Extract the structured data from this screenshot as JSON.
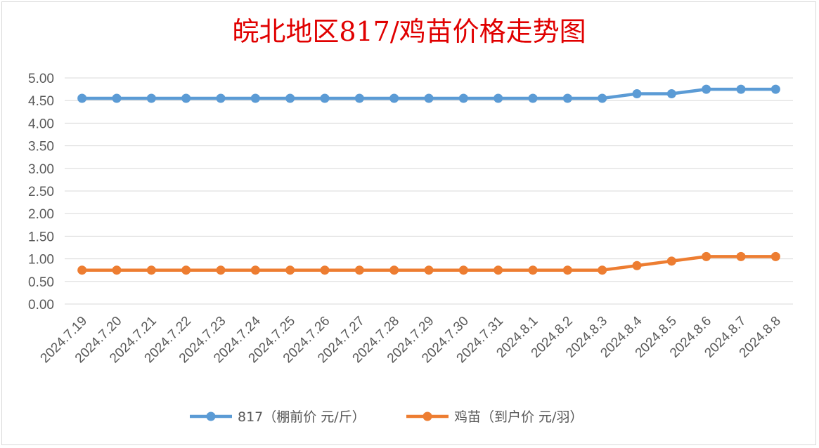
{
  "chart_data": {
    "type": "line",
    "title": "皖北地区817/鸡苗价格走势图",
    "categories": [
      "2024.7.19",
      "2024.7.20",
      "2024.7.21",
      "2024.7.22",
      "2024.7.23",
      "2024.7.24",
      "2024.7.25",
      "2024.7.26",
      "2024.7.27",
      "2024.7.28",
      "2024.7.29",
      "2024.7.30",
      "2024.7.31",
      "2024.8.1",
      "2024.8.2",
      "2024.8.3",
      "2024.8.4",
      "2024.8.5",
      "2024.8.6",
      "2024.8.7",
      "2024.8.8"
    ],
    "series": [
      {
        "name": "817（棚前价 元/斤）",
        "color": "#5b9bd5",
        "values": [
          4.55,
          4.55,
          4.55,
          4.55,
          4.55,
          4.55,
          4.55,
          4.55,
          4.55,
          4.55,
          4.55,
          4.55,
          4.55,
          4.55,
          4.55,
          4.55,
          4.65,
          4.65,
          4.75,
          4.75,
          4.75
        ]
      },
      {
        "name": "鸡苗（到户价 元/羽）",
        "color": "#ed7d31",
        "values": [
          0.75,
          0.75,
          0.75,
          0.75,
          0.75,
          0.75,
          0.75,
          0.75,
          0.75,
          0.75,
          0.75,
          0.75,
          0.75,
          0.75,
          0.75,
          0.75,
          0.85,
          0.95,
          1.05,
          1.05,
          1.05
        ]
      }
    ],
    "y_ticks": [
      "0.00",
      "0.50",
      "1.00",
      "1.50",
      "2.00",
      "2.50",
      "3.00",
      "3.50",
      "4.00",
      "4.50",
      "5.00"
    ],
    "ylim": [
      0,
      5
    ],
    "grid": true,
    "legend_position": "bottom",
    "title_color": "#e00000"
  }
}
